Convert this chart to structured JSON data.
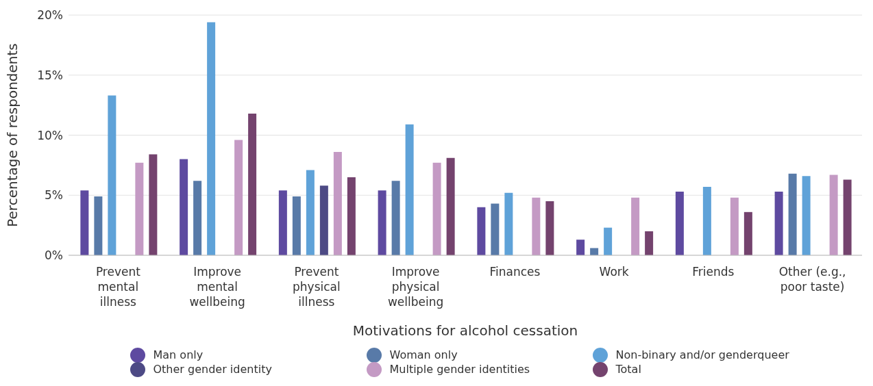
{
  "chart_data": {
    "type": "bar",
    "xlabel": "Motivations for alcohol cessation",
    "ylabel": "Percentage of respondents",
    "categories": [
      "Prevent mental illness",
      "Improve mental wellbeing",
      "Prevent physical illness",
      "Improve physical wellbeing",
      "Finances",
      "Work",
      "Friends",
      "Other (e.g., poor taste)"
    ],
    "series": [
      {
        "name": "Man only",
        "color": "#5e4aa0",
        "values": [
          5.4,
          8.0,
          5.4,
          5.4,
          4.0,
          1.3,
          5.3,
          5.3
        ]
      },
      {
        "name": "Woman only",
        "color": "#587aa8",
        "values": [
          4.9,
          6.2,
          4.9,
          6.2,
          4.3,
          0.6,
          null,
          6.8
        ]
      },
      {
        "name": "Non-binary and/or genderqueer",
        "color": "#5fa2d8",
        "values": [
          13.3,
          19.4,
          7.1,
          10.9,
          5.2,
          2.3,
          5.7,
          6.6
        ]
      },
      {
        "name": "Other gender identity",
        "color": "#4d4a85",
        "values": [
          null,
          null,
          5.8,
          null,
          null,
          null,
          null,
          null
        ]
      },
      {
        "name": "Multiple gender identities",
        "color": "#c49ac4",
        "values": [
          7.7,
          9.6,
          8.6,
          7.7,
          4.8,
          4.8,
          4.8,
          6.7
        ]
      },
      {
        "name": "Total",
        "color": "#74436e",
        "values": [
          8.4,
          11.8,
          6.5,
          8.1,
          4.5,
          2.0,
          3.6,
          6.3
        ]
      }
    ],
    "ylim": [
      0,
      20
    ],
    "yticks": [
      {
        "value": 0,
        "label": "0%"
      },
      {
        "value": 5,
        "label": "5%"
      },
      {
        "value": 10,
        "label": "10%"
      },
      {
        "value": 15,
        "label": "15%"
      },
      {
        "value": 20,
        "label": "20%"
      }
    ],
    "grid": "y",
    "legend": "bottom"
  }
}
